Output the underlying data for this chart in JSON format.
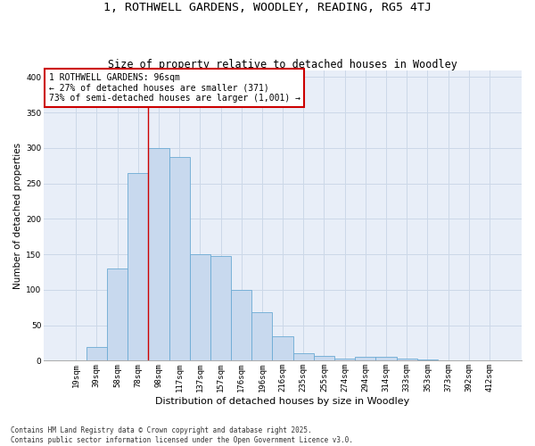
{
  "title": "1, ROTHWELL GARDENS, WOODLEY, READING, RG5 4TJ",
  "subtitle": "Size of property relative to detached houses in Woodley",
  "xlabel": "Distribution of detached houses by size in Woodley",
  "ylabel": "Number of detached properties",
  "bar_labels": [
    "19sqm",
    "39sqm",
    "58sqm",
    "78sqm",
    "98sqm",
    "117sqm",
    "137sqm",
    "157sqm",
    "176sqm",
    "196sqm",
    "216sqm",
    "235sqm",
    "255sqm",
    "274sqm",
    "294sqm",
    "314sqm",
    "333sqm",
    "353sqm",
    "373sqm",
    "392sqm",
    "412sqm"
  ],
  "bar_values": [
    1,
    20,
    130,
    265,
    300,
    287,
    150,
    148,
    100,
    68,
    35,
    10,
    7,
    3,
    5,
    6,
    3,
    2,
    1,
    0,
    0
  ],
  "bar_color": "#c8d9ee",
  "bar_edge_color": "#6baad4",
  "vline_color": "#cc0000",
  "annotation_text": "1 ROTHWELL GARDENS: 96sqm\n← 27% of detached houses are smaller (371)\n73% of semi-detached houses are larger (1,001) →",
  "annotation_box_color": "#ffffff",
  "annotation_box_edge": "#cc0000",
  "grid_color": "#ccd8e8",
  "background_color": "#e8eef8",
  "ylim": [
    0,
    410
  ],
  "yticks": [
    0,
    50,
    100,
    150,
    200,
    250,
    300,
    350,
    400
  ],
  "footnote": "Contains HM Land Registry data © Crown copyright and database right 2025.\nContains public sector information licensed under the Open Government Licence v3.0.",
  "title_fontsize": 9.5,
  "subtitle_fontsize": 8.5,
  "xlabel_fontsize": 8,
  "ylabel_fontsize": 7.5,
  "tick_fontsize": 6.5,
  "footnote_fontsize": 5.5,
  "annotation_fontsize": 7.0
}
